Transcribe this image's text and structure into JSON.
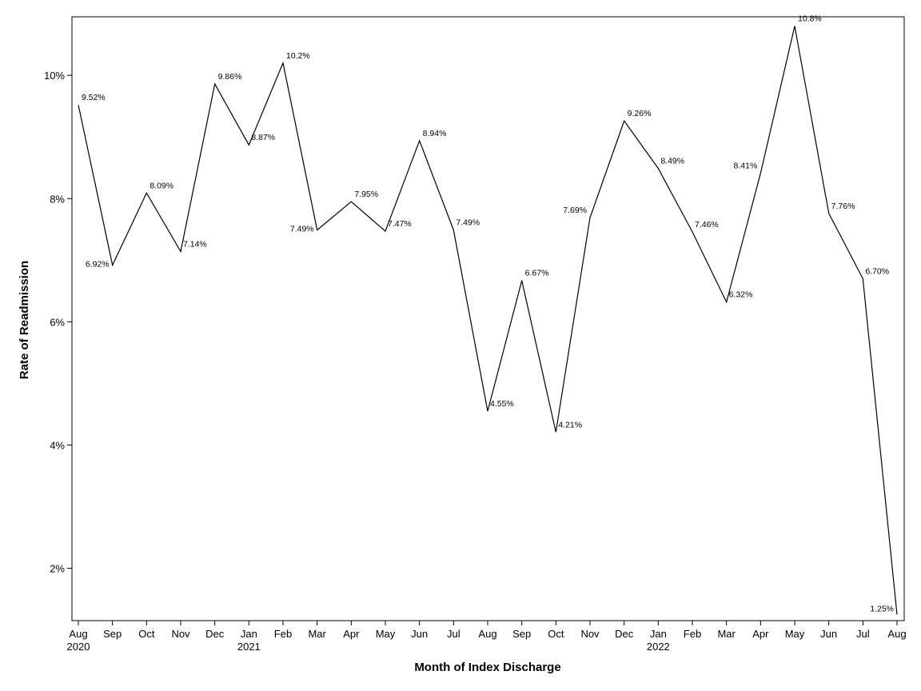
{
  "chart_data": {
    "type": "line",
    "title": "",
    "xlabel": "Month of Index Discharge",
    "ylabel": "Rate of Readmission",
    "ylim": [
      1.15,
      10.95
    ],
    "yticks": [
      {
        "value": 2,
        "label": "2%"
      },
      {
        "value": 4,
        "label": "4%"
      },
      {
        "value": 6,
        "label": "6%"
      },
      {
        "value": 8,
        "label": "8%"
      },
      {
        "value": 10,
        "label": "10%"
      }
    ],
    "grid": false,
    "legend": "none",
    "line_color": "#000000",
    "x": [
      "2020-08",
      "2020-09",
      "2020-10",
      "2020-11",
      "2020-12",
      "2021-01",
      "2021-02",
      "2021-03",
      "2021-04",
      "2021-05",
      "2021-06",
      "2021-07",
      "2021-08",
      "2021-09",
      "2021-10",
      "2021-11",
      "2021-12",
      "2022-01",
      "2022-02",
      "2022-03",
      "2022-04",
      "2022-05",
      "2022-06",
      "2022-07",
      "2022-08"
    ],
    "x_tick_labels": [
      "Aug",
      "Sep",
      "Oct",
      "Nov",
      "Dec",
      "Jan",
      "Feb",
      "Mar",
      "Apr",
      "May",
      "Jun",
      "Jul",
      "Aug",
      "Sep",
      "Oct",
      "Nov",
      "Dec",
      "Jan",
      "Feb",
      "Mar",
      "Apr",
      "May",
      "Jun",
      "Jul",
      "Aug"
    ],
    "year_labels": [
      {
        "index": 0,
        "label": "2020"
      },
      {
        "index": 5,
        "label": "2021"
      },
      {
        "index": 17,
        "label": "2022"
      }
    ],
    "series": [
      {
        "values": [
          9.52,
          6.92,
          8.09,
          7.14,
          9.86,
          8.87,
          10.2,
          7.49,
          7.95,
          7.47,
          8.94,
          7.49,
          4.55,
          6.67,
          4.21,
          7.69,
          9.26,
          8.49,
          7.46,
          6.32,
          8.41,
          10.8,
          7.76,
          6.7,
          1.25
        ],
        "data_labels": [
          "9.52%",
          "6.92%",
          "8.09%",
          "7.14%",
          "9.86%",
          "8.87%",
          "10.2%",
          "7.49%",
          "7.95%",
          "7.47%",
          "8.94%",
          "7.49%",
          "4.55%",
          "6.67%",
          "4.21%",
          "7.69%",
          "9.26%",
          "8.49%",
          "7.46%",
          "6.32%",
          "8.41%",
          "10.8%",
          "7.76%",
          "6.70%",
          "1.25%"
        ]
      }
    ]
  }
}
